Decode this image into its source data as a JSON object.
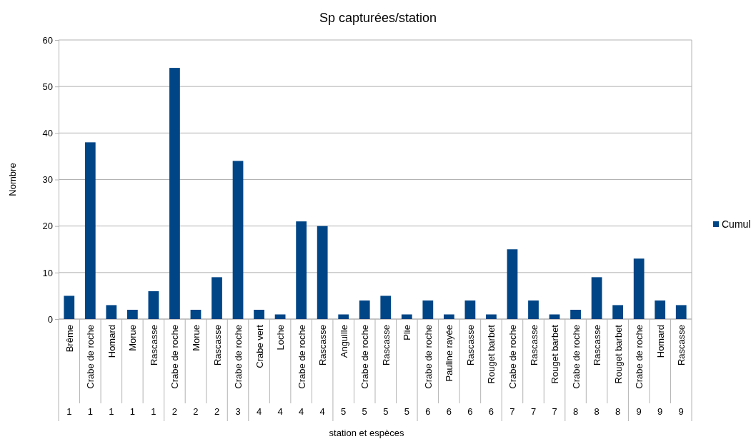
{
  "chart_data": {
    "type": "bar",
    "title": "Sp capturées/station",
    "xlabel": "station et espèces",
    "ylabel": "Nombre",
    "categories": [
      "Brême",
      "Crabe de roche",
      "Homard",
      "Morue",
      "Rascasse",
      "Crabe de roche",
      "Morue",
      "Rascasse",
      "Crabe de roche",
      "Crabe vert",
      "Loche",
      "Crabe de roche",
      "Rascasse",
      "Anguille",
      "Crabe de roche",
      "Rascasse",
      "Plie",
      "Crabe de roche",
      "Pauline rayée",
      "Rascasse",
      "Rouget barbet",
      "Crabe de roche",
      "Rascasse",
      "Rouget barbet",
      "Crabe de roche",
      "Rascasse",
      "Rouget barbet",
      "Crabe de roche",
      "Homard",
      "Rascasse"
    ],
    "annotations": [
      "1",
      "1",
      "1",
      "1",
      "1",
      "2",
      "2",
      "2",
      "3",
      "4",
      "4",
      "4",
      "4",
      "5",
      "5",
      "5",
      "5",
      "6",
      "6",
      "6",
      "6",
      "7",
      "7",
      "7",
      "8",
      "8",
      "8",
      "9",
      "9",
      "9"
    ],
    "series": [
      {
        "name": "Cumul",
        "color": "#004586",
        "values": [
          5,
          38,
          3,
          2,
          6,
          54,
          2,
          9,
          34,
          2,
          1,
          21,
          20,
          1,
          4,
          5,
          1,
          4,
          1,
          4,
          1,
          15,
          4,
          1,
          2,
          9,
          3,
          13,
          4,
          3
        ]
      }
    ],
    "ylim": [
      0,
      60
    ],
    "yticks": [
      0,
      10,
      20,
      30,
      40,
      50,
      60
    ],
    "grid": "y",
    "legend": "right"
  }
}
